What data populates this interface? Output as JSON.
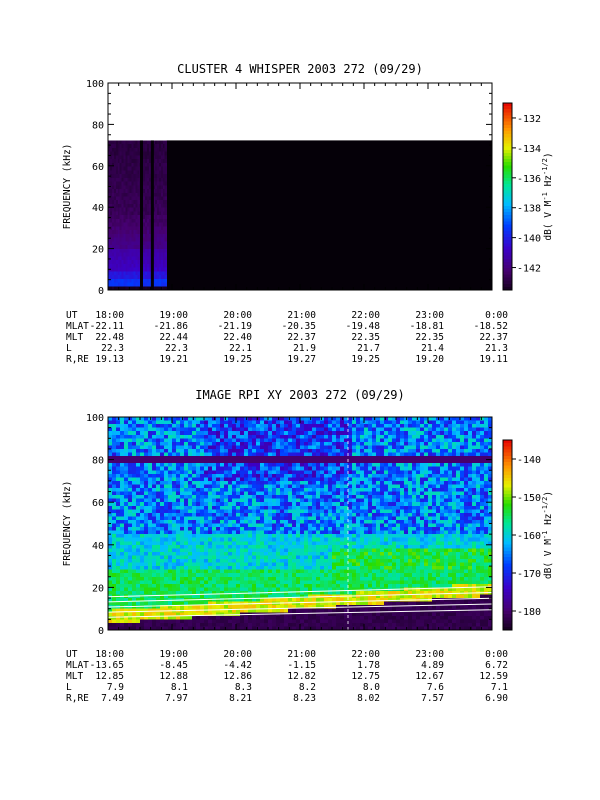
{
  "chart_data": [
    {
      "type": "heatmap",
      "title": "CLUSTER 4 WHISPER 2003 272 (09/29)",
      "xlabel": "",
      "ylabel": "FREQUENCY (kHz)",
      "ylim": [
        0,
        100
      ],
      "yticks": [
        "0",
        "20",
        "40",
        "60",
        "80",
        "100"
      ],
      "xticks": [
        "18:00",
        "19:00",
        "20:00",
        "21:00",
        "22:00",
        "23:00",
        "0:00"
      ],
      "colorbar": {
        "label": "dB( V M⁻¹ Hz⁻¹ᐟ²)",
        "label_parts": [
          "dB( V M",
          "-1",
          " Hz",
          "-1/2",
          ")"
        ],
        "ticks": [
          "-132",
          "-134",
          "-136",
          "-138",
          "-140",
          "-142"
        ],
        "range": [
          -143.5,
          -131
        ],
        "colormap": "rainbow"
      },
      "data_extent": {
        "freq_max_khz": 80,
        "coverage_end": "18:55",
        "fill_after": "-144"
      },
      "ephemeris": [
        {
          "name": "UT",
          "values": [
            "18:00",
            "19:00",
            "20:00",
            "21:00",
            "22:00",
            "23:00",
            "0:00"
          ]
        },
        {
          "name": "MLAT",
          "values": [
            "-22.11",
            "-21.86",
            "-21.19",
            "-20.35",
            "-19.48",
            "-18.81",
            "-18.52"
          ]
        },
        {
          "name": "MLT",
          "values": [
            "22.48",
            "22.44",
            "22.40",
            "22.37",
            "22.35",
            "22.35",
            "22.37"
          ]
        },
        {
          "name": "L",
          "values": [
            "22.3",
            "22.3",
            "22.1",
            "21.9",
            "21.7",
            "21.4",
            "21.3"
          ]
        },
        {
          "name": "R,RE",
          "values": [
            "19.13",
            "19.21",
            "19.25",
            "19.27",
            "19.25",
            "19.20",
            "19.11"
          ]
        }
      ]
    },
    {
      "type": "heatmap",
      "title": "IMAGE RPI XY 2003 272 (09/29)",
      "xlabel": "",
      "ylabel": "FREQUENCY (kHz)",
      "ylim": [
        0,
        100
      ],
      "yticks": [
        "0",
        "20",
        "40",
        "60",
        "80",
        "100"
      ],
      "xticks": [
        "18:00",
        "19:00",
        "20:00",
        "21:00",
        "22:00",
        "23:00",
        "0:00"
      ],
      "colorbar": {
        "label": "dB( V M⁻¹ Hz⁻¹ᐟ²)",
        "label_parts": [
          "dB( V M",
          "-1",
          " Hz",
          "-1/2",
          ")"
        ],
        "ticks": [
          "-140",
          "-150",
          "-160",
          "-170",
          "-180"
        ],
        "range": [
          -185,
          -135
        ],
        "colormap": "rainbow"
      },
      "ephemeris": [
        {
          "name": "UT",
          "values": [
            "18:00",
            "19:00",
            "20:00",
            "21:00",
            "22:00",
            "23:00",
            "0:00"
          ]
        },
        {
          "name": "MLAT",
          "values": [
            "-13.65",
            "-8.45",
            "-4.42",
            "-1.15",
            "1.78",
            "4.89",
            "6.72"
          ]
        },
        {
          "name": "MLT",
          "values": [
            "12.85",
            "12.88",
            "12.86",
            "12.82",
            "12.75",
            "12.67",
            "12.59"
          ]
        },
        {
          "name": "L",
          "values": [
            "7.9",
            "8.1",
            "8.3",
            "8.2",
            "8.0",
            "7.6",
            "7.1"
          ]
        },
        {
          "name": "R,RE",
          "values": [
            "7.49",
            "7.97",
            "8.21",
            "8.23",
            "8.02",
            "7.57",
            "6.90"
          ]
        }
      ]
    }
  ]
}
